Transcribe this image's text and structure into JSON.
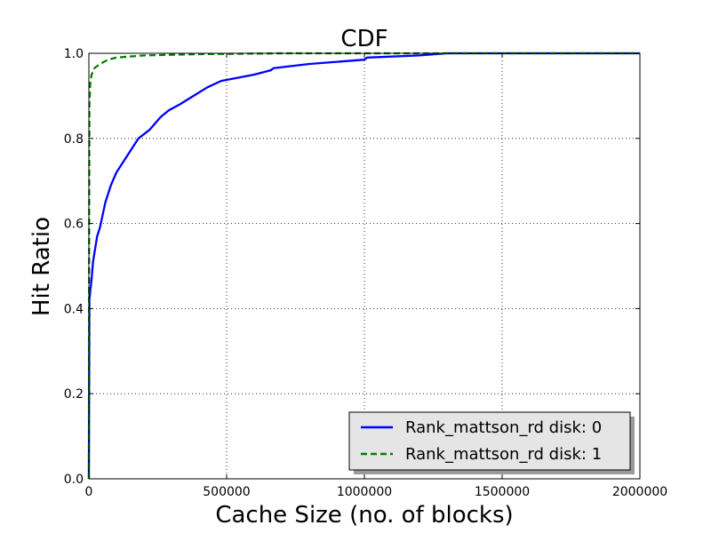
{
  "chart_data": {
    "type": "line",
    "title": "CDF",
    "xlabel": "Cache Size (no. of blocks)",
    "ylabel": "Hit Ratio",
    "xlim": [
      0,
      2000000
    ],
    "ylim": [
      0.0,
      1.0
    ],
    "x_ticks": [
      "0",
      "500000",
      "1000000",
      "1500000",
      "2000000"
    ],
    "y_ticks": [
      "0.0",
      "0.2",
      "0.4",
      "0.6",
      "0.8",
      "1.0"
    ],
    "grid": true,
    "legend_position": "lower-right",
    "series": [
      {
        "name": "Rank_mattson_rd disk: 0",
        "color": "#0000ff",
        "style": "solid",
        "points": [
          [
            0,
            0.0
          ],
          [
            2000,
            0.42
          ],
          [
            5000,
            0.44
          ],
          [
            10000,
            0.47
          ],
          [
            15000,
            0.51
          ],
          [
            20000,
            0.53
          ],
          [
            25000,
            0.55
          ],
          [
            30000,
            0.57
          ],
          [
            40000,
            0.59
          ],
          [
            50000,
            0.62
          ],
          [
            60000,
            0.65
          ],
          [
            70000,
            0.67
          ],
          [
            80000,
            0.69
          ],
          [
            100000,
            0.72
          ],
          [
            120000,
            0.74
          ],
          [
            150000,
            0.77
          ],
          [
            180000,
            0.8
          ],
          [
            220000,
            0.82
          ],
          [
            260000,
            0.85
          ],
          [
            290000,
            0.866
          ],
          [
            330000,
            0.88
          ],
          [
            380000,
            0.9
          ],
          [
            430000,
            0.92
          ],
          [
            480000,
            0.935
          ],
          [
            520000,
            0.94
          ],
          [
            600000,
            0.95
          ],
          [
            660000,
            0.96
          ],
          [
            670000,
            0.965
          ],
          [
            800000,
            0.975
          ],
          [
            1000000,
            0.985
          ],
          [
            1010000,
            0.99
          ],
          [
            1200000,
            0.995
          ],
          [
            1300000,
            1.0
          ],
          [
            2000000,
            1.0
          ]
        ]
      },
      {
        "name": "Rank_mattson_rd disk: 1",
        "color": "#008000",
        "style": "dashed",
        "points": [
          [
            0,
            0.0
          ],
          [
            1000,
            0.6
          ],
          [
            2000,
            0.88
          ],
          [
            5000,
            0.93
          ],
          [
            10000,
            0.95
          ],
          [
            20000,
            0.965
          ],
          [
            40000,
            0.975
          ],
          [
            70000,
            0.985
          ],
          [
            100000,
            0.99
          ],
          [
            200000,
            0.995
          ],
          [
            400000,
            0.998
          ],
          [
            700000,
            1.0
          ],
          [
            2000000,
            1.0
          ]
        ]
      }
    ]
  }
}
